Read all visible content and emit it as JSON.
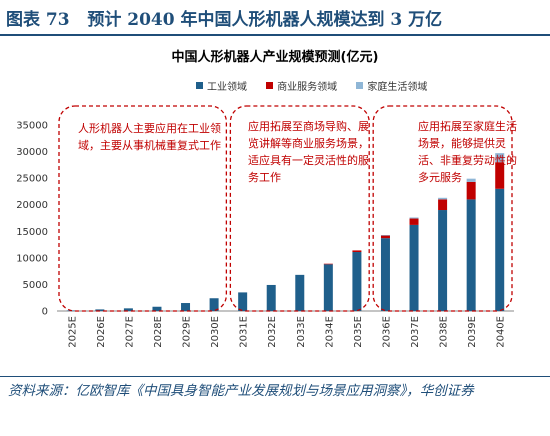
{
  "header": {
    "label": "图表 73",
    "text": "预计 2040 年中国人形机器人规模达到 3 万亿"
  },
  "source": "资料来源：亿欧智库《中国具身智能产业发展规划与场景应用洞察》，华创证券",
  "chart_data": {
    "type": "bar",
    "stacked": true,
    "title": "中国人形机器人产业规模预测(亿元)",
    "categories": [
      "2025E",
      "2026E",
      "2027E",
      "2028E",
      "2029E",
      "2030E",
      "2031E",
      "2032E",
      "2033E",
      "2034E",
      "2035E",
      "2036E",
      "2037E",
      "2038E",
      "2039E",
      "2040E"
    ],
    "series": [
      {
        "name": "工业领域",
        "color": "#1f5f8b",
        "values": [
          100,
          300,
          500,
          800,
          1500,
          2400,
          3500,
          4900,
          6800,
          8800,
          11100,
          13700,
          16200,
          19000,
          21000,
          23000
        ]
      },
      {
        "name": "商业服务领域",
        "color": "#c00000",
        "values": [
          0,
          0,
          0,
          0,
          0,
          0,
          0,
          0,
          0,
          100,
          300,
          500,
          1200,
          2000,
          3300,
          5000
        ]
      },
      {
        "name": "家庭生活领域",
        "color": "#8fb6d6",
        "values": [
          0,
          0,
          0,
          0,
          0,
          0,
          0,
          0,
          0,
          0,
          0,
          100,
          200,
          300,
          600,
          1700
        ]
      }
    ],
    "ylim": [
      0,
      35000
    ],
    "yticks": [
      0,
      5000,
      10000,
      15000,
      20000,
      25000,
      30000,
      35000
    ],
    "grid": false,
    "legend": "top-center",
    "annotations": [
      "人形机器人主要应用在工业领域，主要从事机械重复式工作",
      "应用拓展至商场导购、展览讲解等商业服务场景，适应具有一定灵活性的服务工作",
      "应用拓展至家庭生活场景，能够提供灵活、非重复劳动性的多元服务"
    ]
  }
}
